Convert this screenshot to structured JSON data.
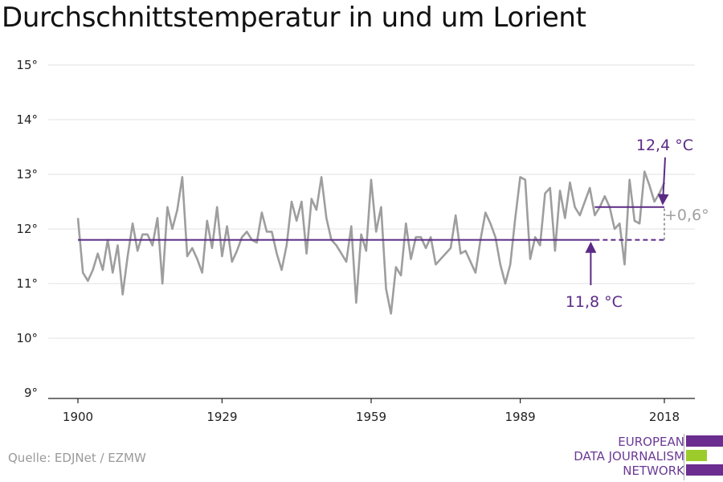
{
  "title": "Durchschnittstemperatur in und um Lorient",
  "source": "Quelle: EDJNet / EZMW",
  "logo": {
    "lines": [
      "EUROPEAN",
      "DATA JOURNALISM",
      "NETWORK"
    ],
    "colors": {
      "purple": "#6b2d8f",
      "green": "#9ccc2b"
    }
  },
  "colors": {
    "series": "#9e9e9e",
    "accent": "#5b2a86",
    "grid": "#e2e2e2",
    "axis": "#222222"
  },
  "chart_data": {
    "type": "line",
    "title": "Durchschnittstemperatur in und um Lorient",
    "xlabel": "",
    "ylabel": "",
    "ylim": [
      9,
      15
    ],
    "xlim": [
      1900,
      2018
    ],
    "y_ticks": [
      9,
      10,
      11,
      12,
      13,
      14,
      15
    ],
    "y_tick_labels": [
      "9°",
      "10°",
      "11°",
      "12°",
      "13°",
      "14°",
      "15°"
    ],
    "x_ticks": [
      1900,
      1929,
      1959,
      1989,
      2018
    ],
    "x_tick_labels": [
      "1900",
      "1929",
      "1959",
      "1989",
      "2018"
    ],
    "grid": true,
    "series": [
      {
        "x": [
          1900,
          1901,
          1902,
          1903,
          1904,
          1905,
          1906,
          1907,
          1908,
          1909,
          1910,
          1911,
          1912,
          1913,
          1914,
          1915,
          1916,
          1917,
          1918,
          1919,
          1920,
          1921,
          1922,
          1923,
          1924,
          1925,
          1926,
          1927,
          1928,
          1929,
          1930,
          1931,
          1932,
          1933,
          1934,
          1935,
          1936,
          1937,
          1938,
          1939,
          1940,
          1941,
          1942,
          1943,
          1944,
          1945,
          1946,
          1947,
          1948,
          1949,
          1950,
          1951,
          1952,
          1953,
          1954,
          1955,
          1956,
          1957,
          1958,
          1959,
          1960,
          1961,
          1962,
          1963,
          1964,
          1965,
          1966,
          1967,
          1968,
          1969,
          1970,
          1971,
          1972,
          1973,
          1974,
          1975,
          1976,
          1977,
          1978,
          1979,
          1980,
          1981,
          1982,
          1983,
          1984,
          1985,
          1986,
          1987,
          1988,
          1989,
          1990,
          1991,
          1992,
          1993,
          1994,
          1995,
          1996,
          1997,
          1998,
          1999,
          2000,
          2001,
          2002,
          2003,
          2004,
          2005,
          2006,
          2007,
          2008,
          2009,
          2010,
          2011,
          2012,
          2013,
          2014,
          2015,
          2016,
          2017,
          2018
        ],
        "values": [
          12.2,
          11.2,
          11.05,
          11.25,
          11.55,
          11.25,
          11.8,
          11.2,
          11.7,
          10.8,
          11.5,
          12.1,
          11.6,
          11.9,
          11.9,
          11.7,
          12.2,
          11.0,
          12.4,
          12.0,
          12.35,
          12.95,
          11.5,
          11.65,
          11.45,
          11.2,
          12.15,
          11.65,
          12.4,
          11.5,
          12.05,
          11.4,
          11.6,
          11.85,
          11.95,
          11.8,
          11.75,
          12.3,
          11.95,
          11.95,
          11.55,
          11.25,
          11.7,
          12.5,
          12.15,
          12.5,
          11.55,
          12.55,
          12.35,
          12.95,
          12.2,
          11.8,
          11.7,
          11.55,
          11.4,
          12.05,
          10.65,
          11.9,
          11.6,
          12.9,
          11.95,
          12.4,
          10.9,
          10.45,
          11.3,
          11.15,
          12.1,
          11.45,
          11.85,
          11.85,
          11.65,
          11.85,
          11.35,
          11.45,
          11.55,
          11.65,
          12.25,
          11.55,
          11.6,
          11.4,
          11.2,
          11.8,
          12.3,
          12.1,
          11.85,
          11.35,
          11.0,
          11.35,
          12.2,
          12.95,
          12.9,
          11.45,
          11.85,
          11.7,
          12.65,
          12.75,
          11.6,
          12.7,
          12.2,
          12.85,
          12.4,
          12.25,
          12.5,
          12.75,
          12.25,
          12.4,
          12.6,
          12.4,
          12.0,
          12.1,
          11.35,
          12.9,
          12.15,
          12.1,
          13.05,
          12.8,
          12.5,
          12.65,
          12.85
        ]
      }
    ],
    "reference_lines": [
      {
        "label": "11,8 °C",
        "value": 11.8,
        "solid_x": [
          1900,
          2004
        ],
        "dashed_x": [
          2004,
          2018
        ]
      },
      {
        "label": "12,4 °C",
        "value": 12.4,
        "solid_x": [
          2004,
          2018
        ]
      }
    ],
    "difference_annotation": {
      "label": "+0,6°",
      "x": 2018,
      "from": 11.8,
      "to": 12.4
    }
  }
}
